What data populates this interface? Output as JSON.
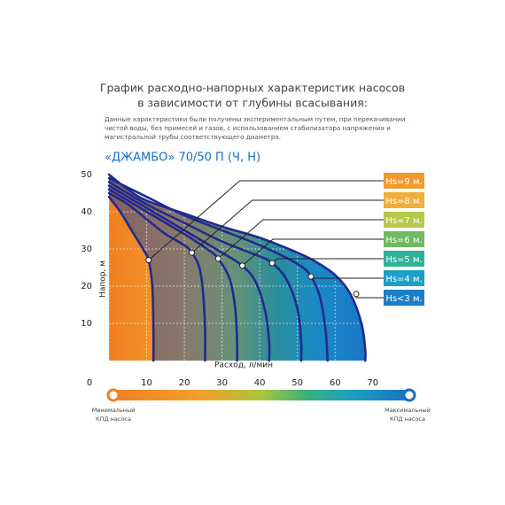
{
  "chart_data": {
    "type": "line",
    "title": [
      "График расходно-напорных характеристик насосов",
      "в зависимости от глубины всасывания:"
    ],
    "note": [
      "Данные характеристики были получены экспериментальным путем, при перекачивании",
      "чистой воды, без примесей и газов, с использованием стабилизатора напряжения и",
      "магистральной трубы соответствующего диаметра."
    ],
    "subtitle": "«ДЖАМБО» 70/50 П (Ч, Н)",
    "x_label": "Расход, л/мин",
    "y_label": "Напор, м",
    "xlim": [
      0,
      71
    ],
    "ylim": [
      0,
      50
    ],
    "xticks": [
      0,
      10,
      20,
      30,
      40,
      50,
      60,
      70
    ],
    "yticks": [
      10,
      20,
      30,
      40,
      50
    ],
    "grid": true,
    "line_color": "#1f2b8e",
    "series": [
      {
        "name": "Hs=9 м.",
        "color": "#f39a2e",
        "x": [
          0,
          3,
          6,
          9,
          10.5,
          11.5,
          11.8,
          11.8
        ],
        "y": [
          44,
          40,
          35,
          30,
          27,
          20,
          8,
          0
        ],
        "point": [
          10.5,
          27
        ]
      },
      {
        "name": "Hs=8 м.",
        "color": "#f0ae3a",
        "x": [
          0,
          5,
          10,
          15,
          20,
          22,
          24,
          25,
          25.5,
          25.5
        ],
        "y": [
          45,
          42,
          38,
          34,
          31,
          29,
          25,
          18,
          8,
          0
        ],
        "point": [
          22,
          29
        ]
      },
      {
        "name": "Hs=7 м.",
        "color": "#b7c94a",
        "x": [
          0,
          10,
          20,
          26,
          29,
          32,
          33.5,
          34,
          34
        ],
        "y": [
          46,
          40,
          34,
          30,
          27.4,
          22,
          14,
          5,
          0
        ],
        "point": [
          29,
          27.4
        ]
      },
      {
        "name": "Hs=6 м.",
        "color": "#6dbb5e",
        "x": [
          0,
          10,
          20,
          30,
          35.4,
          39,
          41.5,
          42.5,
          42.5
        ],
        "y": [
          47,
          41,
          35,
          29,
          25.5,
          21,
          13,
          5,
          0
        ],
        "point": [
          35.4,
          25.5
        ]
      },
      {
        "name": "Hs=5 м.",
        "color": "#2fb29a",
        "x": [
          0,
          10,
          20,
          30,
          40,
          43.3,
          47,
          50,
          51,
          51
        ],
        "y": [
          48,
          42,
          37,
          32,
          28,
          26.2,
          22,
          14,
          5,
          0
        ],
        "point": [
          43.3,
          26.2
        ]
      },
      {
        "name": "Hs=4 м.",
        "color": "#1e9fc8",
        "x": [
          0,
          10,
          20,
          30,
          40,
          50,
          53.6,
          56,
          57.5,
          58
        ],
        "y": [
          49,
          44,
          39,
          35,
          31,
          26,
          22.6,
          17,
          8,
          0
        ],
        "point": [
          53.6,
          22.6
        ]
      },
      {
        "name": "Hs<3 м.",
        "color": "#1a7fc8",
        "x": [
          0,
          5,
          10,
          20,
          30,
          40,
          50,
          55,
          60,
          64,
          67,
          68,
          68
        ],
        "y": [
          50,
          46,
          43,
          39.5,
          36,
          33,
          29,
          26.5,
          23,
          18,
          10,
          3,
          0
        ],
        "point": [
          65.6,
          17.9
        ]
      }
    ],
    "colorbar": {
      "left": [
        "Минимальный",
        "КПД насоса"
      ],
      "right": [
        "Максимальный",
        "КПД насоса"
      ]
    }
  }
}
